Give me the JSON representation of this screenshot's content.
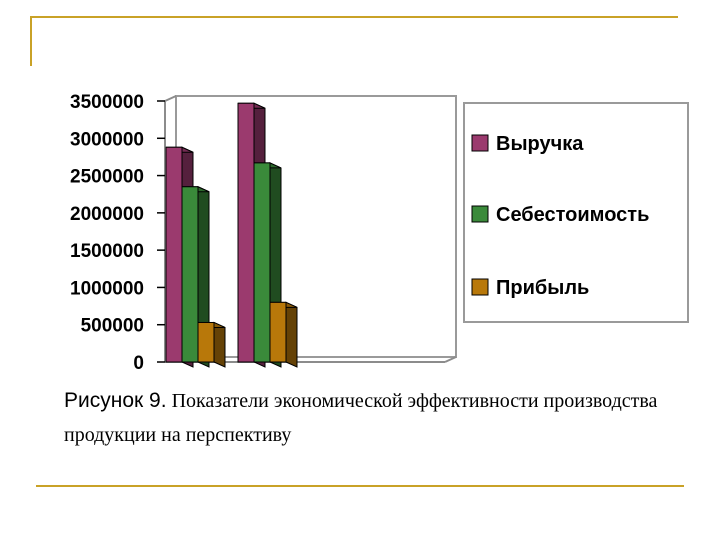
{
  "colors": {
    "accent_line": "#c9a227"
  },
  "chart_data": {
    "type": "bar",
    "style": "3d-clustered",
    "categories": [
      "",
      ""
    ],
    "series": [
      {
        "name": "Выручка",
        "values": [
          2880000,
          3470000
        ],
        "color": "#9b3a6e"
      },
      {
        "name": "Себестоимость",
        "values": [
          2350000,
          2670000
        ],
        "color": "#3a8a3a"
      },
      {
        "name": "Прибыль",
        "values": [
          530000,
          800000
        ],
        "color": "#b8780a"
      }
    ],
    "ylim": [
      0,
      3500000
    ],
    "yticks": [
      "0",
      "500000",
      "1000000",
      "1500000",
      "2000000",
      "2500000",
      "3000000",
      "3500000"
    ],
    "title": "",
    "xlabel": "",
    "ylabel": "",
    "grid": false,
    "legend_position": "right"
  },
  "caption": {
    "lead": "Рисунок 9.",
    "text": " Показатели экономической эффективности производства продукции на перспективу"
  }
}
